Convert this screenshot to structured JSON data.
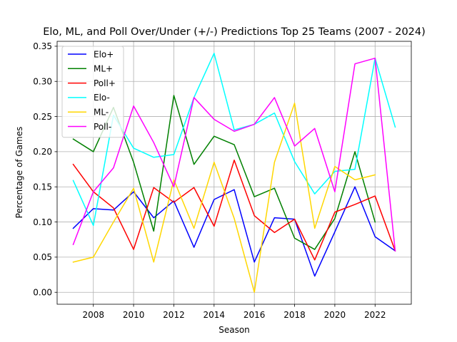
{
  "chart_data": {
    "type": "line",
    "title": "Elo, ML, and Poll Over/Under (+/-) Predictions Top 25 Teams (2007 - 2024)",
    "xlabel": "Season",
    "ylabel": "Percentage of Games",
    "xlim": [
      2006.2,
      2023.8
    ],
    "ylim": [
      -0.017,
      0.357
    ],
    "x_ticks": [
      2008,
      2010,
      2012,
      2014,
      2016,
      2018,
      2020,
      2022
    ],
    "y_ticks": [
      0.0,
      0.05,
      0.1,
      0.15,
      0.2,
      0.25,
      0.3,
      0.35
    ],
    "x_tick_labels": [
      "2008",
      "2010",
      "2012",
      "2014",
      "2016",
      "2018",
      "2020",
      "2022"
    ],
    "y_tick_labels": [
      "0.00",
      "0.05",
      "0.10",
      "0.15",
      "0.20",
      "0.25",
      "0.30",
      "0.35"
    ],
    "grid": true,
    "legend_position": "top-left",
    "series": [
      {
        "name": "Elo+",
        "color": "#0000ff",
        "x": [
          2007,
          2008,
          2009,
          2010,
          2011,
          2012,
          2013,
          2014,
          2015,
          2016,
          2017,
          2018,
          2019,
          2020,
          2021,
          2022,
          2023
        ],
        "values": [
          0.091,
          0.119,
          0.117,
          0.143,
          0.106,
          0.13,
          0.064,
          0.132,
          0.146,
          0.043,
          0.106,
          0.104,
          0.023,
          0.086,
          0.15,
          0.079,
          0.059
        ]
      },
      {
        "name": "ML+",
        "color": "#008000",
        "x": [
          2007,
          2008,
          2009,
          2010,
          2011,
          2012,
          2013,
          2014,
          2015,
          2016,
          2017,
          2018,
          2019,
          2020,
          2021,
          2022
        ],
        "values": [
          0.218,
          0.2,
          0.263,
          0.185,
          0.087,
          0.28,
          0.182,
          0.222,
          0.21,
          0.136,
          0.148,
          0.077,
          0.061,
          0.105,
          0.2,
          0.1
        ]
      },
      {
        "name": "Poll+",
        "color": "#ff0000",
        "x": [
          2007,
          2008,
          2009,
          2010,
          2011,
          2012,
          2013,
          2014,
          2015,
          2016,
          2017,
          2018,
          2019,
          2020,
          2021,
          2022,
          2023
        ],
        "values": [
          0.182,
          0.143,
          0.12,
          0.061,
          0.149,
          0.128,
          0.149,
          0.094,
          0.188,
          0.109,
          0.085,
          0.104,
          0.046,
          0.114,
          0.125,
          0.137,
          0.059
        ]
      },
      {
        "name": "Elo-",
        "color": "#00ffff",
        "x": [
          2007,
          2008,
          2009,
          2010,
          2011,
          2012,
          2013,
          2014,
          2015,
          2016,
          2017,
          2018,
          2019,
          2020,
          2021,
          2022,
          2023
        ],
        "values": [
          0.159,
          0.095,
          0.252,
          0.205,
          0.192,
          0.196,
          0.277,
          0.34,
          0.231,
          0.239,
          0.255,
          0.186,
          0.14,
          0.172,
          0.175,
          0.333,
          0.235
        ]
      },
      {
        "name": "ML-",
        "color": "#ffd700",
        "x": [
          2007,
          2008,
          2009,
          2010,
          2011,
          2012,
          2013,
          2014,
          2015,
          2016,
          2017,
          2018,
          2019,
          2020,
          2021,
          2022
        ],
        "values": [
          0.043,
          0.05,
          0.1,
          0.148,
          0.043,
          0.16,
          0.091,
          0.185,
          0.105,
          0.0,
          0.185,
          0.269,
          0.091,
          0.179,
          0.16,
          0.167
        ]
      },
      {
        "name": "Poll-",
        "color": "#ff00ff",
        "x": [
          2007,
          2008,
          2009,
          2010,
          2011,
          2012,
          2013,
          2014,
          2015,
          2016,
          2017,
          2018,
          2019,
          2020,
          2021,
          2022,
          2023
        ],
        "values": [
          0.068,
          0.143,
          0.177,
          0.265,
          0.213,
          0.15,
          0.277,
          0.246,
          0.229,
          0.239,
          0.277,
          0.208,
          0.233,
          0.143,
          0.325,
          0.333,
          0.059
        ]
      }
    ]
  }
}
